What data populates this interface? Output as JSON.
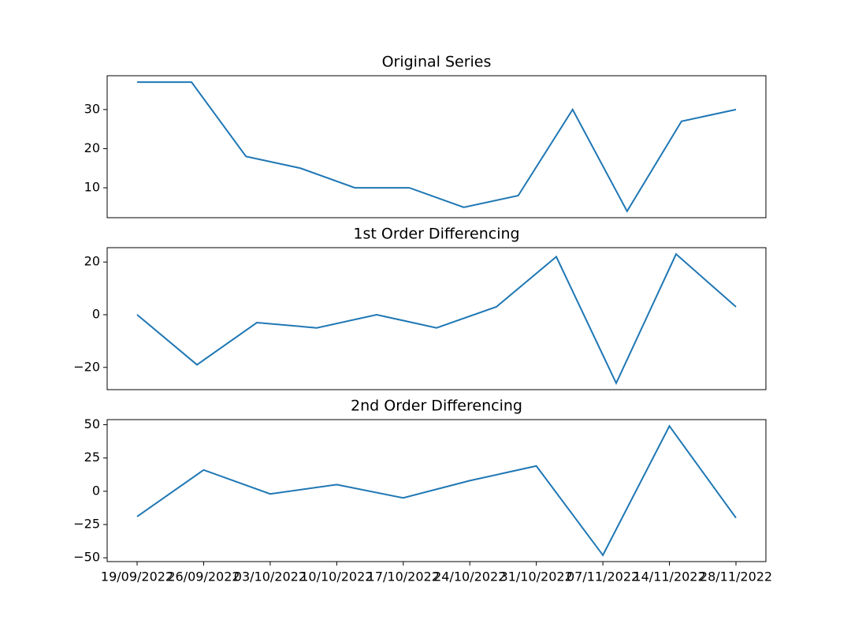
{
  "chart_data": [
    {
      "type": "line",
      "title": "Original Series",
      "color": "#1f77b4",
      "values": [
        37,
        37,
        18,
        15,
        10,
        10,
        5,
        8,
        30,
        4,
        27,
        30
      ],
      "ylim": [
        2.35,
        38.65
      ],
      "yticks": [
        10,
        20,
        30
      ]
    },
    {
      "type": "line",
      "title": "1st Order Differencing",
      "color": "#1f77b4",
      "values": [
        0,
        -19,
        -3,
        -5,
        0,
        -5,
        3,
        22,
        -26,
        23,
        3
      ],
      "ylim": [
        -28.45,
        25.45
      ],
      "yticks": [
        {
          "value": -20,
          "label": "−20"
        },
        0,
        20
      ]
    },
    {
      "type": "line",
      "title": "2nd Order Differencing",
      "color": "#1f77b4",
      "categories": [
        "19/09/2022",
        "26/09/2022",
        "03/10/2022",
        "10/10/2022",
        "17/10/2022",
        "24/10/2022",
        "31/10/2022",
        "07/11/2022",
        "14/11/2022",
        "28/11/2022"
      ],
      "values": [
        -19,
        16,
        -2,
        5,
        -5,
        8,
        19,
        -48,
        49,
        -20
      ],
      "ylim": [
        -52.85,
        53.85
      ],
      "yticks": [
        {
          "value": -50,
          "label": "−50"
        },
        {
          "value": -25,
          "label": "−25"
        },
        0,
        25,
        50
      ]
    }
  ]
}
